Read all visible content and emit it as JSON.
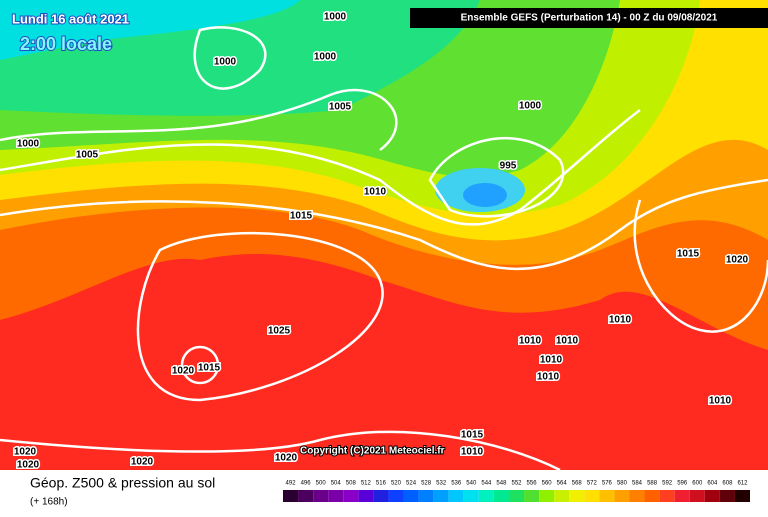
{
  "header": {
    "date": "Lundi 16 août 2021",
    "time": "2:00 locale",
    "run": "Ensemble GEFS  (Perturbation 14)  -  00 Z du 09/08/2021"
  },
  "isobar_labels": [
    "1000",
    "1000",
    "1000",
    "1000",
    "1005",
    "1005",
    "1000",
    "995",
    "1010",
    "1015",
    "1015",
    "1020",
    "1025",
    "1010",
    "1010",
    "1010",
    "1010",
    "1010",
    "1020",
    "1015",
    "1010",
    "1015",
    "1010",
    "1020",
    "1020",
    "1020",
    "1020"
  ],
  "copyright": "Copyright (C)2021 Meteociel.fr",
  "footer": {
    "title": "Géop. Z500 & pression au sol",
    "lead": "(+ 168h)"
  },
  "legend": {
    "steps": [
      {
        "value": 492,
        "color": "#2a0030"
      },
      {
        "value": 496,
        "color": "#4b0060"
      },
      {
        "value": 500,
        "color": "#6a008a"
      },
      {
        "value": 504,
        "color": "#7a00a8"
      },
      {
        "value": 508,
        "color": "#8a00c8"
      },
      {
        "value": 512,
        "color": "#5a00d8"
      },
      {
        "value": 516,
        "color": "#2020e0"
      },
      {
        "value": 520,
        "color": "#1040ff"
      },
      {
        "value": 524,
        "color": "#0060ff"
      },
      {
        "value": 528,
        "color": "#0080ff"
      },
      {
        "value": 532,
        "color": "#00a0ff"
      },
      {
        "value": 536,
        "color": "#00c8ff"
      },
      {
        "value": 540,
        "color": "#00e0f0"
      },
      {
        "value": 544,
        "color": "#00f0c0"
      },
      {
        "value": 548,
        "color": "#00e890"
      },
      {
        "value": 552,
        "color": "#20e060"
      },
      {
        "value": 556,
        "color": "#50e030"
      },
      {
        "value": 560,
        "color": "#90f000"
      },
      {
        "value": 564,
        "color": "#c8f000"
      },
      {
        "value": 568,
        "color": "#f0f000"
      },
      {
        "value": 572,
        "color": "#ffe000"
      },
      {
        "value": 576,
        "color": "#ffc000"
      },
      {
        "value": 580,
        "color": "#ffa000"
      },
      {
        "value": 584,
        "color": "#ff8000"
      },
      {
        "value": 588,
        "color": "#ff6000"
      },
      {
        "value": 592,
        "color": "#ff4020"
      },
      {
        "value": 596,
        "color": "#f02030"
      },
      {
        "value": 600,
        "color": "#d01020"
      },
      {
        "value": 604,
        "color": "#a00010"
      },
      {
        "value": 608,
        "color": "#600008"
      },
      {
        "value": 612,
        "color": "#200000"
      }
    ]
  }
}
